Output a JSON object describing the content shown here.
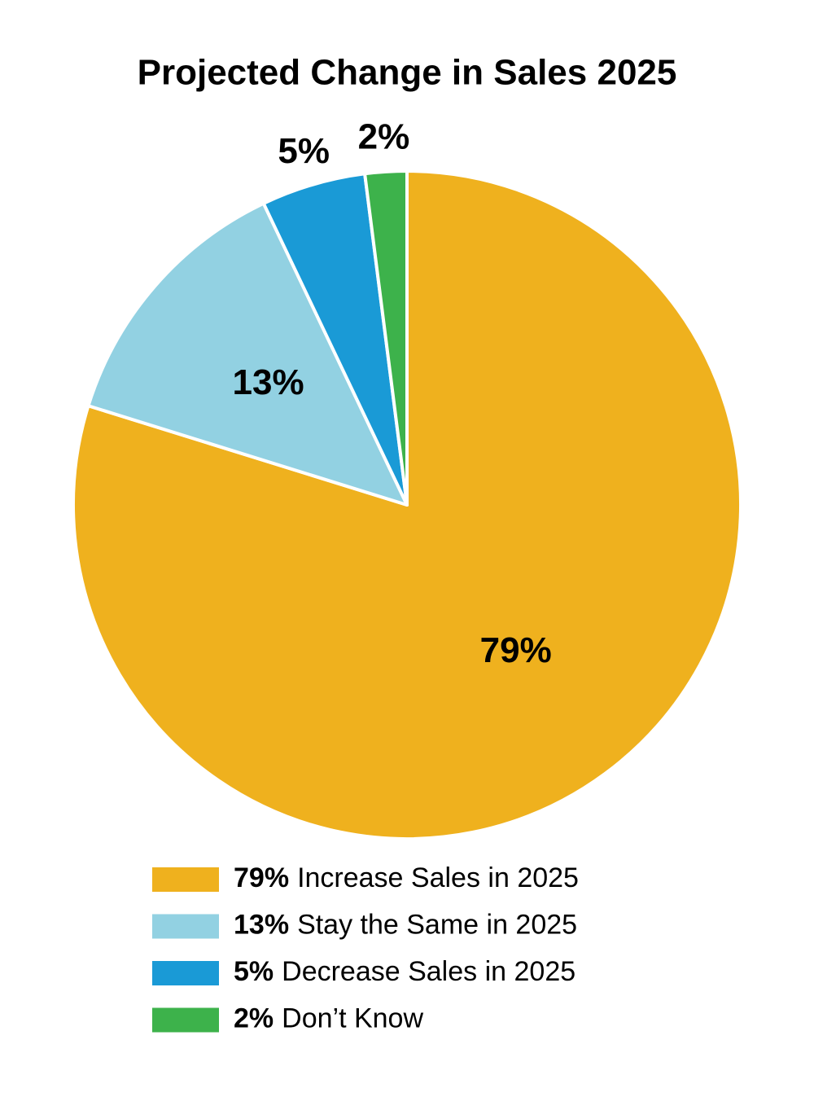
{
  "chart_data": {
    "type": "pie",
    "title": "Projected Change in Sales 2025",
    "categories": [
      "Increase Sales in 2025",
      "Stay the Same in 2025",
      "Decrease Sales in 2025",
      "Don’t Know"
    ],
    "values": [
      79,
      13,
      5,
      2
    ],
    "value_labels": [
      "79%",
      "13%",
      "5%",
      "2%"
    ],
    "colors": [
      "#efb11e",
      "#92d1e2",
      "#1a9ad6",
      "#3db24b"
    ],
    "legend": "bottom"
  }
}
